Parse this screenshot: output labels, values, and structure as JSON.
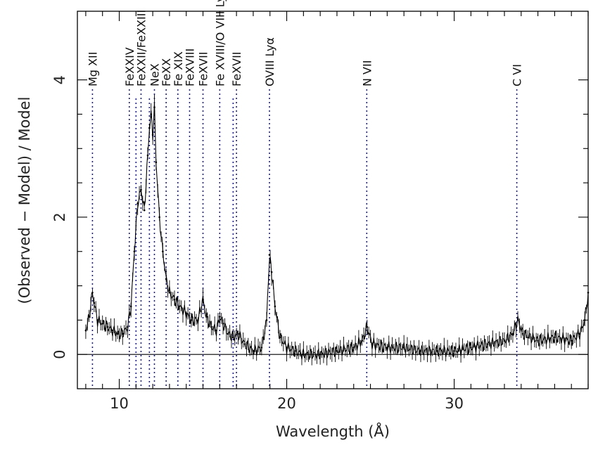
{
  "chart_data": {
    "type": "line",
    "title": "",
    "xlabel": "Wavelength (Å)",
    "ylabel": "(Observed − Model) / Model",
    "xlim": [
      7.5,
      38
    ],
    "ylim": [
      -0.5,
      5
    ],
    "x_ticks": [
      10,
      20,
      30
    ],
    "y_ticks": [
      0,
      2,
      4
    ],
    "x_tick_labels": [
      "10",
      "20",
      "30"
    ],
    "y_tick_labels": [
      "0",
      "2",
      "4"
    ],
    "zero_line": 0,
    "grid": false,
    "legend": "none",
    "colors": {
      "data": "#000000",
      "markers": "#1a1aaa",
      "axes": "#000000"
    },
    "line_identifications": [
      {
        "label": "Mg XII",
        "wavelength": 8.4
      },
      {
        "label": "FeXXIV",
        "wavelength": 10.6
      },
      {
        "label": "FeXXII/FeXXIII",
        "wavelength": 11.3
      },
      {
        "label": "NeX",
        "wavelength": 12.1
      },
      {
        "label": "FeXX",
        "wavelength": 12.8
      },
      {
        "label": "Fe XIX",
        "wavelength": 13.5
      },
      {
        "label": "FeXVIII",
        "wavelength": 14.2
      },
      {
        "label": "FeXVII",
        "wavelength": 15.0
      },
      {
        "label": "Fe XVIII/O VIII Lyβ",
        "wavelength": 16.0
      },
      {
        "label": "FeXVII",
        "wavelength": 17.0
      },
      {
        "label": "OVIII Lyα",
        "wavelength": 18.97
      },
      {
        "label": "N VII",
        "wavelength": 24.78
      },
      {
        "label": "C VI",
        "wavelength": 33.74
      }
    ],
    "extra_marker_lines": [
      11.0,
      11.8,
      16.8
    ],
    "series": [
      {
        "x": [
          8.0,
          8.2,
          8.4,
          8.5,
          8.7,
          9.0,
          9.3,
          9.6,
          9.9,
          10.2,
          10.5,
          10.7,
          10.9,
          11.1,
          11.3,
          11.5,
          11.7,
          11.8,
          11.9,
          12.0,
          12.1,
          12.2,
          12.4,
          12.6,
          12.8,
          13.0,
          13.3,
          13.6,
          14.0,
          14.3,
          14.7,
          15.0,
          15.2,
          15.5,
          15.8,
          16.0,
          16.2,
          16.5,
          16.8,
          17.1,
          17.5,
          18.0,
          18.5,
          18.8,
          18.97,
          19.1,
          19.3,
          19.6,
          20.0,
          20.5,
          21.0,
          22.0,
          23.0,
          24.0,
          24.5,
          24.8,
          25.1,
          26.0,
          27.0,
          28.0,
          29.0,
          30.0,
          31.0,
          32.0,
          33.0,
          33.5,
          33.8,
          34.1,
          35.0,
          36.0,
          37.0,
          37.5,
          37.8,
          38.0
        ],
        "y": [
          0.35,
          0.55,
          0.9,
          0.75,
          0.5,
          0.45,
          0.4,
          0.35,
          0.3,
          0.3,
          0.4,
          0.7,
          1.5,
          2.2,
          2.4,
          2.1,
          2.9,
          3.3,
          3.5,
          3.2,
          3.6,
          2.8,
          2.0,
          1.5,
          1.1,
          0.9,
          0.8,
          0.7,
          0.6,
          0.5,
          0.5,
          0.8,
          0.55,
          0.4,
          0.35,
          0.55,
          0.45,
          0.3,
          0.25,
          0.3,
          0.15,
          0.05,
          0.1,
          0.5,
          1.45,
          1.2,
          0.7,
          0.25,
          0.1,
          0.05,
          0.0,
          0.0,
          0.05,
          0.1,
          0.2,
          0.4,
          0.15,
          0.1,
          0.1,
          0.05,
          0.05,
          0.05,
          0.1,
          0.15,
          0.2,
          0.3,
          0.5,
          0.3,
          0.2,
          0.25,
          0.2,
          0.3,
          0.5,
          0.9
        ]
      }
    ]
  }
}
